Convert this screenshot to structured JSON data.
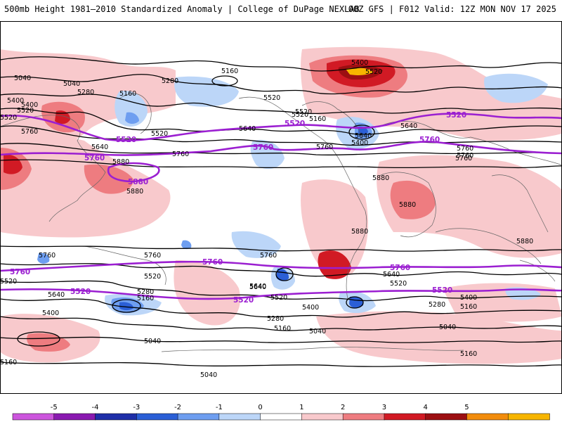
{
  "header": {
    "title": "500mb Height 1981–2010 Standardized Anomaly | College of DuPage NEXLAB",
    "run": "00Z GFS | F012 Valid: 12Z MON NOV 17 2025"
  },
  "colorbar": {
    "ticks": [
      "-5",
      "-4",
      "-3",
      "-2",
      "-1",
      "0",
      "1",
      "2",
      "3",
      "4",
      "5"
    ],
    "colors": [
      "#cc55dd",
      "#8a1ab0",
      "#1f2fa8",
      "#2b5fd6",
      "#6e9ef0",
      "#bcd6f8",
      "#ffffff",
      "#f8c9cc",
      "#ee7c80",
      "#d11a24",
      "#9c0f12",
      "#f28c0c",
      "#f7b500"
    ]
  },
  "map": {
    "contour_labels": [
      "5040",
      "5160",
      "5280",
      "5160",
      "5280",
      "5400",
      "5520",
      "5400",
      "5520",
      "5640",
      "5760",
      "5520",
      "5640",
      "5760",
      "5880",
      "5880",
      "5760",
      "5760",
      "5520",
      "5520",
      "5640",
      "5400",
      "5640",
      "5760",
      "5880",
      "5880",
      "5880",
      "5880",
      "5640",
      "5520",
      "5400",
      "5640",
      "5760",
      "5760",
      "5760",
      "5520",
      "5280",
      "5160",
      "5520",
      "5640",
      "5400",
      "5280",
      "5160",
      "5040",
      "5040",
      "5160",
      "5040",
      "5640",
      "5520",
      "5400",
      "5280",
      "5160",
      "5040",
      "5160",
      "5040",
      "5160",
      "5400",
      "5520",
      "5520",
      "5760"
    ],
    "purple_labels": [
      "5520",
      "5760",
      "5880",
      "5760",
      "5520",
      "5520",
      "5760",
      "5760",
      "5520",
      "5520",
      "5760",
      "5760",
      "5520"
    ],
    "colors": {
      "ocean_bg": "#ffffff",
      "contour": "#000000",
      "purple_contour": "#9b1fd1",
      "coast": "#666666"
    }
  }
}
